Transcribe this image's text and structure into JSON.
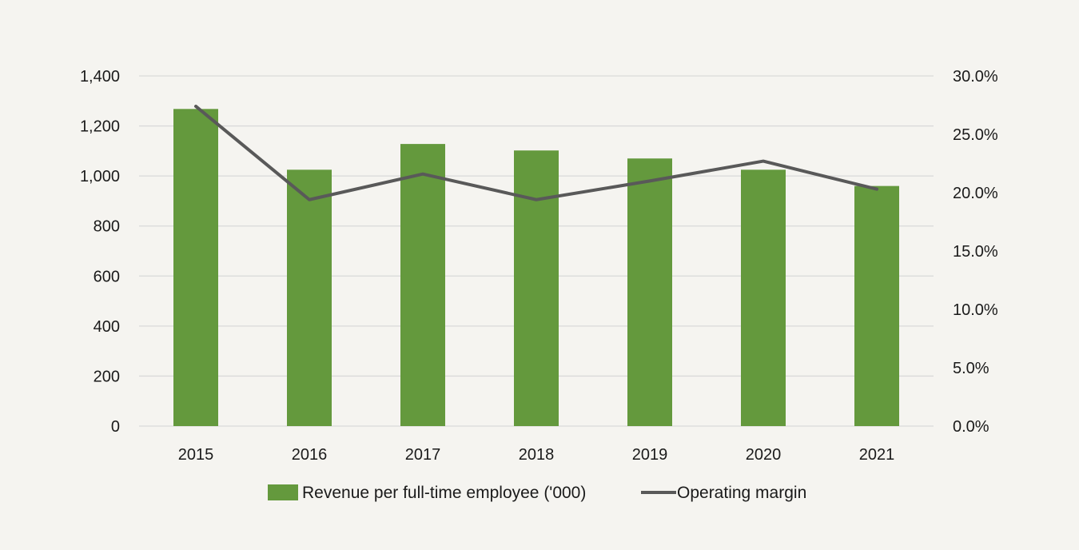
{
  "chart_data": {
    "type": "bar+line",
    "title": "",
    "categories": [
      "2015",
      "2016",
      "2017",
      "2018",
      "2019",
      "2020",
      "2021"
    ],
    "series": [
      {
        "name": "Revenue per full-time employee ('000)",
        "kind": "bar",
        "axis": "left",
        "color": "#64993d",
        "values": [
          1268,
          1025,
          1128,
          1102,
          1070,
          1025,
          960
        ]
      },
      {
        "name": "Operating margin",
        "kind": "line",
        "axis": "right",
        "color": "#595959",
        "values": [
          27.4,
          19.4,
          21.6,
          19.4,
          21.0,
          22.7,
          20.3
        ]
      }
    ],
    "y_left": {
      "ylim": [
        0,
        1400
      ],
      "ticks": [
        0,
        200,
        400,
        600,
        800,
        1000,
        1200,
        1400
      ],
      "tick_labels": [
        "0",
        "200",
        "400",
        "600",
        "800",
        "1,000",
        "1,200",
        "1,400"
      ]
    },
    "y_right": {
      "ylim": [
        0,
        30
      ],
      "ticks": [
        0,
        5,
        10,
        15,
        20,
        25,
        30
      ],
      "tick_labels": [
        "0.0%",
        "5.0%",
        "10.0%",
        "15.0%",
        "20.0%",
        "25.0%",
        "30.0%"
      ]
    },
    "grid": true,
    "legend_position": "bottom",
    "gridline_color": "#d9d9d9",
    "background_color": "#f5f4f0"
  }
}
